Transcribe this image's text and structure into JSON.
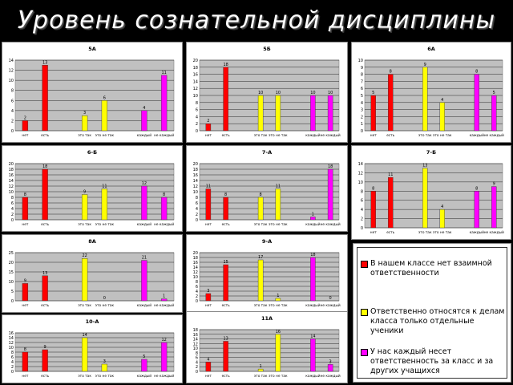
{
  "slide": {
    "title": "Уровень сознательной дисциплины"
  },
  "legend": {
    "items": [
      {
        "text": "В нашем классе нет взаимной ответственности",
        "color": "#ff0000"
      },
      {
        "text": "Ответственно относятся к делам класса только отдельные ученики",
        "color": "#ffff00"
      },
      {
        "text": "У нас каждый несет ответственность за класс и за других учащихся",
        "color": "#ff00ff"
      }
    ]
  },
  "colors": {
    "red": "#ff0000",
    "yellow": "#ffff00",
    "magenta": "#ff00ff",
    "plot_bg": "#c0c0c0"
  },
  "chart_data": [
    {
      "type": "bar",
      "title": "5А",
      "categories": [
        "нет",
        "есть",
        "это так",
        "это не так",
        "каждый",
        "не каждый"
      ],
      "values": [
        2,
        13,
        3,
        6,
        4,
        11
      ],
      "ylim": [
        0,
        14
      ],
      "yticks": [
        0,
        2,
        4,
        6,
        8,
        10,
        12,
        14
      ]
    },
    {
      "type": "bar",
      "title": "5Б",
      "categories": [
        "нет",
        "есть",
        "это так",
        "это не так",
        "каждый",
        "не каждый"
      ],
      "values": [
        2,
        18,
        10,
        10,
        10,
        10
      ],
      "ylim": [
        0,
        20
      ],
      "yticks": [
        0,
        2,
        4,
        6,
        8,
        10,
        12,
        14,
        16,
        18,
        20
      ]
    },
    {
      "type": "bar",
      "title": "6А",
      "categories": [
        "нет",
        "есть",
        "это так",
        "это не так",
        "каждый",
        "не каждый"
      ],
      "values": [
        5,
        8,
        9,
        4,
        8,
        5
      ],
      "ylim": [
        0,
        10
      ],
      "yticks": [
        0,
        1,
        2,
        3,
        4,
        5,
        6,
        7,
        8,
        9,
        10
      ]
    },
    {
      "type": "bar",
      "title": "6-Б",
      "categories": [
        "нет",
        "есть",
        "это так",
        "это не так",
        "каждый",
        "не каждый"
      ],
      "values": [
        8,
        18,
        9,
        11,
        12,
        8
      ],
      "ylim": [
        0,
        20
      ],
      "yticks": [
        0,
        2,
        4,
        6,
        8,
        10,
        12,
        14,
        16,
        18,
        20
      ]
    },
    {
      "type": "bar",
      "title": "7-А",
      "categories": [
        "нет",
        "есть",
        "это так",
        "это не так",
        "каждый",
        "не каждый"
      ],
      "values": [
        11,
        8,
        8,
        11,
        1,
        18
      ],
      "ylim": [
        0,
        20
      ],
      "yticks": [
        0,
        2,
        4,
        6,
        8,
        10,
        12,
        14,
        16,
        18,
        20
      ]
    },
    {
      "type": "bar",
      "title": "7-Б",
      "categories": [
        "нет",
        "есть",
        "это так",
        "это не так",
        "каждый",
        "не каждый"
      ],
      "values": [
        8,
        11,
        13,
        4,
        8,
        9
      ],
      "ylim": [
        0,
        14
      ],
      "yticks": [
        0,
        2,
        4,
        6,
        8,
        10,
        12,
        14
      ]
    },
    {
      "type": "bar",
      "title": "8А",
      "categories": [
        "нет",
        "есть",
        "это так",
        "это не так",
        "каждый",
        "не каждый"
      ],
      "values": [
        9,
        13,
        22,
        0,
        21,
        1
      ],
      "ylim": [
        0,
        25
      ],
      "yticks": [
        0,
        5,
        10,
        15,
        20,
        25
      ]
    },
    {
      "type": "bar",
      "title": "9-А",
      "categories": [
        "нет",
        "есть",
        "это так",
        "это не так",
        "каждый",
        "не каждый"
      ],
      "values": [
        3,
        15,
        17,
        1,
        18,
        0
      ],
      "ylim": [
        0,
        20
      ],
      "yticks": [
        0,
        2,
        4,
        6,
        8,
        10,
        12,
        14,
        16,
        18,
        20
      ]
    },
    {
      "type": "bar",
      "title": "10-А",
      "categories": [
        "нет",
        "есть",
        "это так",
        "это не так",
        "каждый",
        "не каждый"
      ],
      "values": [
        8,
        9,
        14,
        3,
        5,
        12
      ],
      "ylim": [
        0,
        16
      ],
      "yticks": [
        0,
        2,
        4,
        6,
        8,
        10,
        12,
        14,
        16
      ]
    },
    {
      "type": "bar",
      "title": "11А",
      "categories": [
        "нет",
        "есть",
        "это так",
        "это не так",
        "каждый",
        "не каждый"
      ],
      "values": [
        4,
        13,
        1,
        16,
        14,
        3
      ],
      "ylim": [
        0,
        18
      ],
      "yticks": [
        0,
        2,
        4,
        6,
        8,
        10,
        12,
        14,
        16,
        18
      ]
    }
  ]
}
